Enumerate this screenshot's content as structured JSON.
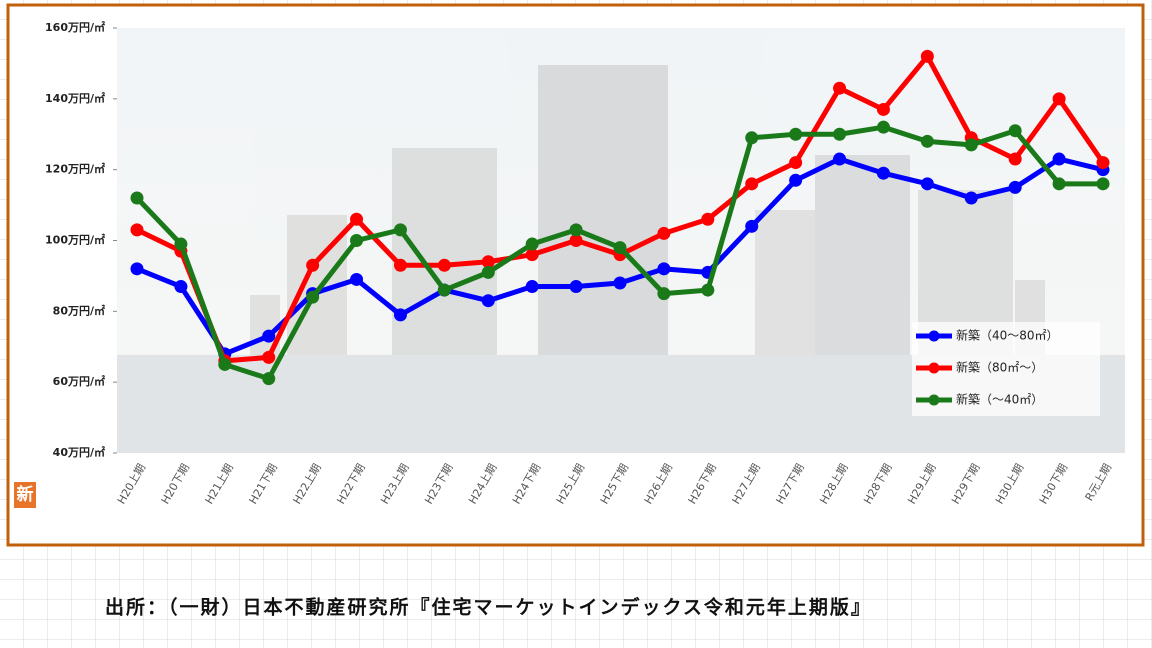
{
  "chart_data": {
    "type": "line",
    "categories": [
      "H20上期",
      "H20下期",
      "H21上期",
      "H21下期",
      "H22上期",
      "H22下期",
      "H23上期",
      "H23下期",
      "H24上期",
      "H24下期",
      "H25上期",
      "H25下期",
      "H26上期",
      "H26下期",
      "H27上期",
      "H27下期",
      "H28上期",
      "H28下期",
      "H29上期",
      "H29下期",
      "H30上期",
      "H30下期",
      "R元上期"
    ],
    "series": [
      {
        "name": "新築（40～80㎡）",
        "color": "#0000ff",
        "values": [
          92,
          87,
          68,
          73,
          85,
          89,
          79,
          86,
          83,
          87,
          87,
          88,
          92,
          91,
          104,
          117,
          123,
          119,
          116,
          112,
          115,
          123,
          120
        ]
      },
      {
        "name": "新築（80㎡～）",
        "color": "#ff0000",
        "values": [
          103,
          97,
          66,
          67,
          93,
          106,
          93,
          93,
          94,
          96,
          100,
          96,
          102,
          106,
          116,
          122,
          143,
          137,
          152,
          129,
          123,
          140,
          122
        ]
      },
      {
        "name": "新築（～40㎡）",
        "color": "#1a7a1a",
        "values": [
          112,
          99,
          65,
          61,
          84,
          100,
          103,
          86,
          91,
          99,
          103,
          98,
          85,
          86,
          129,
          130,
          130,
          132,
          128,
          127,
          131,
          116,
          116
        ]
      }
    ],
    "ylim": [
      40,
      160
    ],
    "yticks": [
      {
        "value": 40,
        "label": "40万円/㎡"
      },
      {
        "value": 60,
        "label": "60万円/㎡"
      },
      {
        "value": 80,
        "label": "80万円/㎡"
      },
      {
        "value": 100,
        "label": "100万円/㎡"
      },
      {
        "value": 120,
        "label": "120万円/㎡"
      },
      {
        "value": 140,
        "label": "140万円/㎡"
      },
      {
        "value": 160,
        "label": "160万円/㎡"
      }
    ]
  },
  "badge": "新",
  "source": "出所：（一財）日本不動産研究所『住宅マーケットインデックス令和元年上期版』"
}
